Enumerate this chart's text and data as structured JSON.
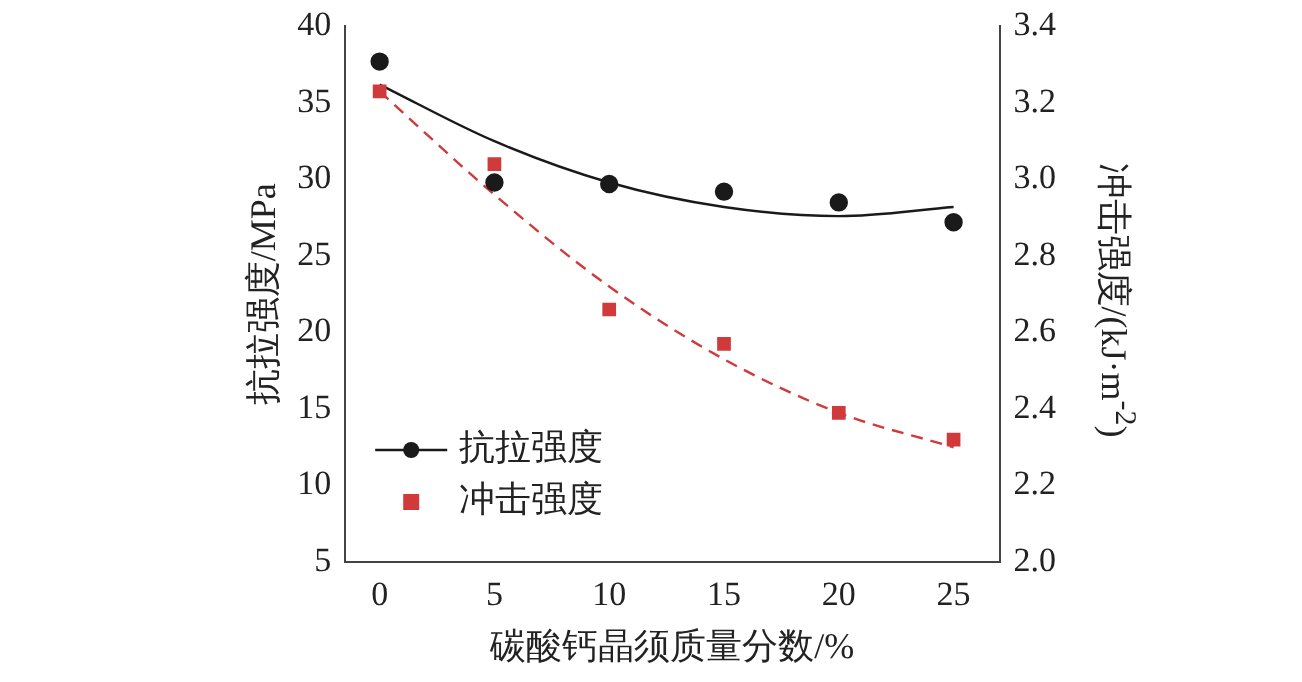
{
  "chart_data": {
    "type": "scatter",
    "xlabel": "碳酸钙晶须质量分数/%",
    "ylabel": "抗拉强度/MPa",
    "y2label": "冲击强度/(kJ·m$^{-2}$)",
    "x": [
      0,
      5,
      10,
      15,
      20,
      25
    ],
    "xlim": [
      -1.5,
      27
    ],
    "xticks": [
      0,
      5,
      10,
      15,
      20,
      25
    ],
    "ylim": [
      5,
      40
    ],
    "yticks": [
      5,
      10,
      15,
      20,
      25,
      30,
      35,
      40
    ],
    "y2lim": [
      2.0,
      3.4
    ],
    "y2ticks": [
      {
        "value": 2.0,
        "label": "2.0"
      },
      {
        "value": 2.2,
        "label": "2.2"
      },
      {
        "value": 2.4,
        "label": "2.4"
      },
      {
        "value": 2.6,
        "label": "2.6"
      },
      {
        "value": 2.8,
        "label": "2.8"
      },
      {
        "value": 3.0,
        "label": "3.0"
      },
      {
        "value": 3.2,
        "label": "3.2"
      },
      {
        "value": 3.4,
        "label": "3.4"
      }
    ],
    "grid": false,
    "legend": "bottom left",
    "series": [
      {
        "name": "抗拉强度",
        "type": "scatter",
        "color": "#1a1a1a",
        "marker": "circle",
        "line_style": "solid",
        "values": [
          37.7,
          29.8,
          29.7,
          29.2,
          28.5,
          27.2
        ]
      },
      {
        "name": "冲击强度",
        "type": "scatter",
        "color": "#d03a3a",
        "marker": "square",
        "axis": "y2",
        "values": [
          3.23,
          3.04,
          2.66,
          2.57,
          2.39,
          2.32
        ]
      },
      {
        "type": "line",
        "color": "#1a1a1a",
        "marker": "none",
        "line_style": "solid",
        "values": [
          36.2,
          32.5,
          29.8,
          28.2,
          27.6,
          28.2
        ]
      },
      {
        "type": "line",
        "color": "#d03a3a",
        "marker": "none",
        "line_style": "dashed",
        "axis": "y2",
        "values": [
          3.23,
          2.96,
          2.72,
          2.53,
          2.39,
          2.3
        ]
      }
    ]
  }
}
